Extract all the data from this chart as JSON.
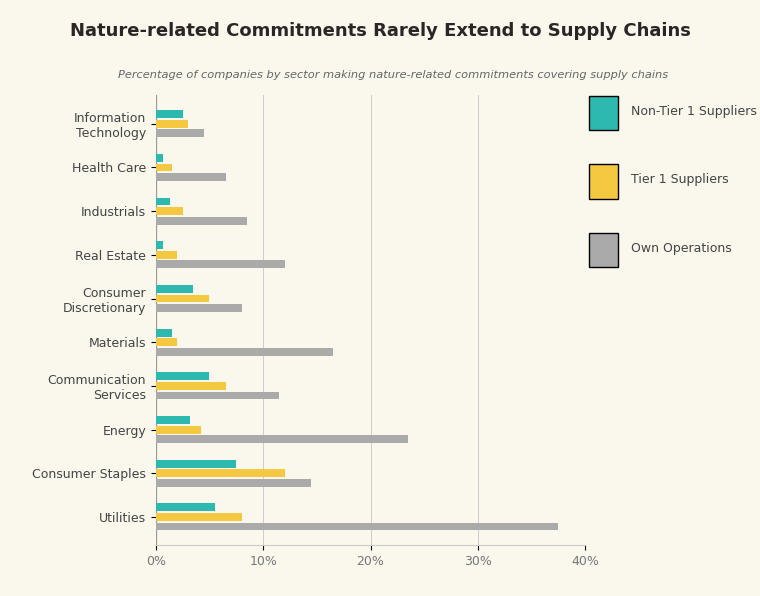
{
  "title": "Nature-related Commitments Rarely Extend to Supply Chains",
  "subtitle": "Percentage of companies by sector making nature-related commitments covering supply chains",
  "title_bg_color": "#F5C842",
  "background_color": "#FAF7EC",
  "plot_bg_color": "#FAF7EC",
  "categories": [
    "Information\nTechnology",
    "Health Care",
    "Industrials",
    "Real Estate",
    "Consumer\nDiscretionary",
    "Materials",
    "Communication\nServices",
    "Energy",
    "Consumer Staples",
    "Utilities"
  ],
  "non_tier1": [
    2.5,
    0.7,
    1.3,
    0.7,
    3.5,
    1.5,
    5.0,
    3.2,
    7.5,
    5.5
  ],
  "tier1": [
    3.0,
    1.5,
    2.5,
    2.0,
    5.0,
    2.0,
    6.5,
    4.2,
    12.0,
    8.0
  ],
  "own_ops": [
    4.5,
    6.5,
    8.5,
    12.0,
    8.0,
    16.5,
    11.5,
    23.5,
    14.5,
    37.5
  ],
  "colors": {
    "non_tier1": "#2DB9B0",
    "tier1": "#F5C842",
    "own_ops": "#AAAAAA"
  },
  "xlim": [
    0,
    40
  ],
  "xticks": [
    0,
    10,
    20,
    30,
    40
  ],
  "xticklabels": [
    "0%",
    "10%",
    "20%",
    "30%",
    "40%"
  ],
  "legend_labels": [
    "Non-Tier 1 Suppliers",
    "Tier 1 Suppliers",
    "Own Operations"
  ]
}
